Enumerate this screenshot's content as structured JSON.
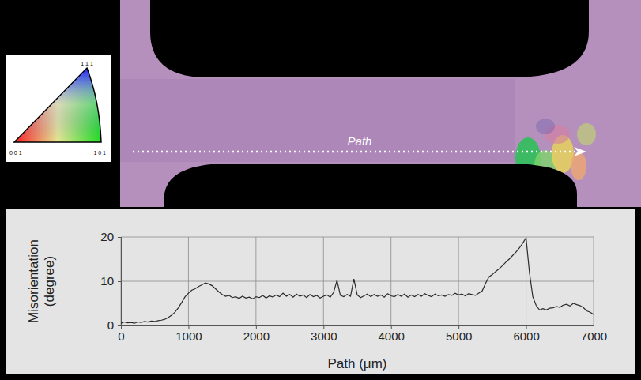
{
  "chart_data": {
    "type": "line",
    "xlabel": "Path (μm)",
    "ylabel": "Misorientation (degree)",
    "color": "#2b2b2b",
    "grid": true,
    "xlim": [
      0,
      7000
    ],
    "ylim": [
      0,
      20
    ],
    "xticks": [
      0,
      1000,
      2000,
      3000,
      4000,
      5000,
      6000,
      7000
    ],
    "yticks": [
      0,
      10,
      20
    ],
    "x": [
      0,
      50,
      100,
      150,
      200,
      250,
      300,
      350,
      400,
      450,
      500,
      550,
      600,
      650,
      700,
      750,
      800,
      850,
      900,
      950,
      1000,
      1050,
      1100,
      1150,
      1200,
      1250,
      1300,
      1350,
      1400,
      1450,
      1500,
      1550,
      1600,
      1650,
      1700,
      1750,
      1800,
      1850,
      1900,
      1950,
      2000,
      2050,
      2100,
      2150,
      2200,
      2250,
      2300,
      2350,
      2400,
      2450,
      2500,
      2550,
      2600,
      2650,
      2700,
      2750,
      2800,
      2850,
      2900,
      2950,
      3000,
      3050,
      3100,
      3150,
      3200,
      3250,
      3300,
      3350,
      3400,
      3450,
      3500,
      3550,
      3600,
      3650,
      3700,
      3750,
      3800,
      3850,
      3900,
      3950,
      4000,
      4050,
      4100,
      4150,
      4200,
      4250,
      4300,
      4350,
      4400,
      4450,
      4500,
      4550,
      4600,
      4650,
      4700,
      4750,
      4800,
      4850,
      4900,
      4950,
      5000,
      5050,
      5100,
      5150,
      5200,
      5250,
      5300,
      5350,
      5400,
      5450,
      5500,
      5550,
      5600,
      5650,
      5700,
      5750,
      5800,
      5850,
      5900,
      5950,
      6000,
      6050,
      6100,
      6150,
      6200,
      6250,
      6300,
      6350,
      6400,
      6450,
      6500,
      6550,
      6600,
      6650,
      6700,
      6750,
      6800,
      6850,
      6900,
      6950,
      7000
    ],
    "values": [
      0.5,
      0.8,
      0.6,
      0.7,
      0.5,
      0.8,
      0.7,
      0.9,
      0.8,
      1.0,
      0.9,
      1.1,
      1.2,
      1.4,
      1.8,
      2.3,
      3.0,
      4.0,
      5.2,
      6.5,
      7.3,
      8.0,
      8.3,
      8.8,
      9.2,
      9.6,
      9.4,
      9.0,
      8.3,
      7.6,
      7.0,
      6.6,
      6.8,
      6.3,
      6.5,
      6.1,
      6.6,
      6.2,
      6.4,
      6.0,
      6.5,
      6.3,
      6.8,
      6.2,
      6.7,
      6.4,
      6.9,
      6.5,
      7.3,
      6.6,
      7.0,
      6.4,
      7.1,
      6.6,
      6.9,
      6.3,
      7.0,
      6.5,
      6.8,
      6.2,
      6.6,
      6.9,
      6.4,
      7.5,
      10.2,
      6.8,
      6.5,
      7.0,
      6.6,
      10.5,
      6.9,
      6.3,
      6.7,
      7.1,
      6.5,
      7.0,
      6.6,
      6.9,
      6.4,
      7.2,
      6.7,
      6.5,
      7.0,
      6.6,
      7.1,
      6.4,
      6.9,
      6.5,
      7.0,
      6.6,
      7.2,
      6.8,
      6.5,
      7.1,
      6.7,
      6.9,
      6.6,
      7.0,
      6.8,
      7.3,
      6.9,
      7.1,
      6.7,
      7.2,
      7.0,
      6.8,
      7.3,
      7.8,
      9.5,
      11.0,
      11.5,
      12.2,
      12.8,
      13.5,
      14.3,
      15.0,
      15.8,
      16.6,
      17.5,
      18.6,
      19.8,
      12.0,
      6.5,
      4.5,
      3.5,
      3.8,
      3.5,
      3.9,
      4.0,
      4.3,
      4.1,
      4.6,
      4.8,
      4.4,
      5.0,
      4.7,
      4.5,
      4.0,
      3.3,
      3.0,
      2.5
    ]
  },
  "ebsd_map": {
    "path_label": "Path",
    "ipf_legend": {
      "top": "1 1 1",
      "left": "0 0 1",
      "right": "1 0 1"
    }
  }
}
